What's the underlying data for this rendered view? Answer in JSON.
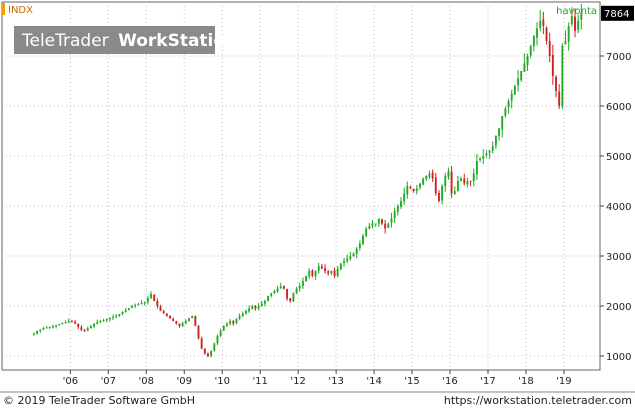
{
  "header": {
    "symbol": "INDX",
    "watermark": "TeleTrader",
    "watermark_bold": "WorkStation",
    "period_label": "havonta",
    "last_value_label": "7864"
  },
  "footer": {
    "copyright": "© 2019 TeleTrader Software GmbH",
    "url": "https://workstation.teletrader.com"
  },
  "colors": {
    "up": "#22aa22",
    "down": "#cc2222",
    "accent": "#ff9900",
    "grid": "#bbbbbb",
    "label_bg": "#000000",
    "label_fg": "#ffffff",
    "watermark_bg": "#8a8a8a"
  },
  "chart_data": {
    "type": "candlestick",
    "frequency": "monthly",
    "grid": true,
    "ylim": [
      800,
      8000
    ],
    "y_ticks": [
      1000,
      2000,
      3000,
      4000,
      5000,
      6000,
      7000
    ],
    "x_ticks": [
      {
        "label": "'06",
        "year": 2006
      },
      {
        "label": "'07",
        "year": 2007
      },
      {
        "label": "'08",
        "year": 2008
      },
      {
        "label": "'09",
        "year": 2009
      },
      {
        "label": "'10",
        "year": 2010
      },
      {
        "label": "'11",
        "year": 2011
      },
      {
        "label": "'12",
        "year": 2012
      },
      {
        "label": "'13",
        "year": 2013
      },
      {
        "label": "'14",
        "year": 2014
      },
      {
        "label": "'15",
        "year": 2015
      },
      {
        "label": "'16",
        "year": 2016
      },
      {
        "label": "'17",
        "year": 2017
      },
      {
        "label": "'18",
        "year": 2018
      },
      {
        "label": "'19",
        "year": 2019
      }
    ],
    "x_range": [
      2004.2,
      2019.95
    ],
    "last_value": 7864,
    "start_year": 2005,
    "closes": [
      1450,
      1500,
      1530,
      1560,
      1570,
      1580,
      1600,
      1620,
      1640,
      1660,
      1680,
      1700,
      1690,
      1650,
      1580,
      1520,
      1500,
      1560,
      1600,
      1640,
      1680,
      1700,
      1720,
      1740,
      1760,
      1780,
      1800,
      1840,
      1880,
      1920,
      1960,
      2000,
      2020,
      2040,
      2060,
      2080,
      2160,
      2240,
      2100,
      2000,
      1900,
      1850,
      1800,
      1750,
      1700,
      1650,
      1600,
      1650,
      1700,
      1750,
      1800,
      1600,
      1350,
      1150,
      1050,
      1000,
      1100,
      1250,
      1400,
      1500,
      1600,
      1650,
      1700,
      1650,
      1750,
      1800,
      1850,
      1900,
      1950,
      2000,
      1950,
      2000,
      2050,
      2100,
      2200,
      2250,
      2300,
      2350,
      2400,
      2350,
      2150,
      2100,
      2250,
      2350,
      2400,
      2500,
      2600,
      2700,
      2600,
      2700,
      2800,
      2750,
      2700,
      2650,
      2700,
      2600,
      2750,
      2850,
      2900,
      2950,
      3000,
      3050,
      3150,
      3250,
      3400,
      3550,
      3600,
      3650,
      3650,
      3750,
      3650,
      3550,
      3650,
      3750,
      3900,
      4000,
      4100,
      4250,
      4400,
      4350,
      4300,
      4350,
      4450,
      4550,
      4600,
      4650,
      4550,
      4250,
      4100,
      4400,
      4600,
      4700,
      4250,
      4300,
      4500,
      4550,
      4450,
      4500,
      4500,
      4650,
      4900,
      4950,
      5000,
      5050,
      5100,
      5200,
      5400,
      5550,
      5800,
      5950,
      6100,
      6250,
      6400,
      6550,
      6700,
      6850,
      7000,
      7200,
      7400,
      7550,
      7700,
      7600,
      7300,
      7000,
      6600,
      6300,
      6000,
      7200,
      7300,
      7600,
      7800,
      7500,
      7700,
      7864
    ]
  }
}
